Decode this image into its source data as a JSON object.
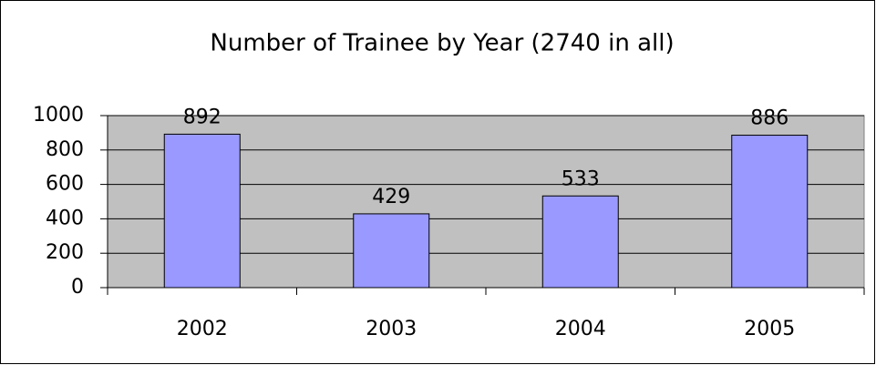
{
  "chart_data": {
    "type": "bar",
    "title": "Number of Trainee by Year (2740 in all)",
    "categories": [
      "2002",
      "2003",
      "2004",
      "2005"
    ],
    "values": [
      892,
      429,
      533,
      886
    ],
    "color": "#9999ff",
    "ylim": [
      0,
      1000
    ],
    "yticks": [
      0,
      200,
      400,
      600,
      800,
      1000
    ],
    "grid": true
  }
}
